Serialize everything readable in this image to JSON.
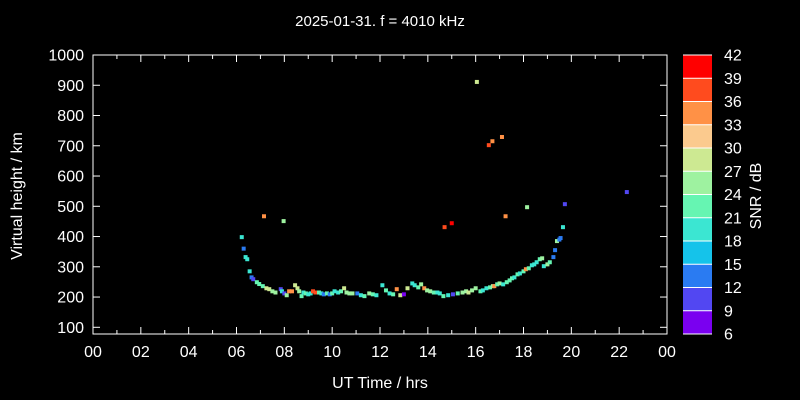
{
  "title": "2025-01-31. f = 4010 kHz",
  "axes": {
    "xlabel": "UT Time / hrs",
    "ylabel": "Virtual height / km",
    "colorbar_label": "SNR / dB"
  },
  "colors": {
    "background": "#000000",
    "frame": "#ffffff",
    "text": "#ffffff"
  },
  "chart_data": {
    "type": "scatter",
    "title": "2025-01-31. f = 4010 kHz",
    "xlabel": "UT Time / hrs",
    "ylabel": "Virtual height / km",
    "xlim": [
      0,
      24
    ],
    "ylim": [
      100,
      1000
    ],
    "x_tick_labels": [
      "00",
      "02",
      "04",
      "06",
      "08",
      "10",
      "12",
      "14",
      "16",
      "18",
      "20",
      "22",
      "00"
    ],
    "x_major_step_hrs": 2,
    "x_minor_step_hrs": 1,
    "y_tick_labels": [
      "100",
      "200",
      "300",
      "400",
      "500",
      "600",
      "700",
      "800",
      "900",
      "1000"
    ],
    "grid": false,
    "colorbar": {
      "label": "SNR / dB",
      "min": 6,
      "max": 42,
      "step": 3,
      "tick_labels": [
        "6",
        "9",
        "12",
        "15",
        "18",
        "21",
        "24",
        "27",
        "30",
        "33",
        "36",
        "39",
        "42"
      ],
      "segment_colors_bottom_to_top": [
        "#7a00f0",
        "#5247f2",
        "#2a7bf2",
        "#15c3ea",
        "#3be6d2",
        "#66f5b2",
        "#9ef2a0",
        "#cde992",
        "#fbca8e",
        "#ff9146",
        "#ff4b1e",
        "#ff0000"
      ]
    },
    "point_format": [
      "ut_hrs",
      "virtual_height_km",
      "snr_db"
    ],
    "points": [
      [
        6.22,
        398,
        19
      ],
      [
        6.3,
        360,
        13
      ],
      [
        6.38,
        332,
        19
      ],
      [
        6.45,
        325,
        20
      ],
      [
        6.55,
        285,
        19
      ],
      [
        6.63,
        265,
        12
      ],
      [
        6.7,
        259,
        11
      ],
      [
        6.85,
        249,
        22
      ],
      [
        6.95,
        243,
        22
      ],
      [
        7.1,
        236,
        23
      ],
      [
        7.15,
        467,
        34
      ],
      [
        7.25,
        229,
        28
      ],
      [
        7.37,
        226,
        28
      ],
      [
        7.5,
        219,
        25
      ],
      [
        7.63,
        215,
        25
      ],
      [
        7.85,
        226,
        10
      ],
      [
        7.9,
        219,
        19
      ],
      [
        7.97,
        451,
        25
      ],
      [
        8.0,
        212,
        9
      ],
      [
        8.1,
        206,
        26
      ],
      [
        8.2,
        219,
        34
      ],
      [
        8.32,
        219,
        33
      ],
      [
        8.45,
        239,
        28
      ],
      [
        8.55,
        229,
        28
      ],
      [
        8.62,
        219,
        26
      ],
      [
        8.72,
        203,
        21
      ],
      [
        8.8,
        215,
        19
      ],
      [
        8.9,
        212,
        22
      ],
      [
        9.0,
        209,
        19
      ],
      [
        9.1,
        212,
        19
      ],
      [
        9.2,
        219,
        38
      ],
      [
        9.3,
        215,
        37
      ],
      [
        9.45,
        215,
        22
      ],
      [
        9.55,
        212,
        19
      ],
      [
        9.65,
        209,
        13
      ],
      [
        9.78,
        212,
        21
      ],
      [
        9.9,
        209,
        14
      ],
      [
        10.0,
        212,
        22
      ],
      [
        10.1,
        219,
        19
      ],
      [
        10.25,
        215,
        19
      ],
      [
        10.37,
        219,
        21
      ],
      [
        10.5,
        229,
        28
      ],
      [
        10.6,
        215,
        25
      ],
      [
        10.72,
        212,
        26
      ],
      [
        10.85,
        212,
        25
      ],
      [
        11.05,
        212,
        13
      ],
      [
        11.2,
        206,
        19
      ],
      [
        11.35,
        203,
        21
      ],
      [
        11.55,
        212,
        25
      ],
      [
        11.7,
        209,
        21
      ],
      [
        11.85,
        206,
        19
      ],
      [
        12.1,
        239,
        19
      ],
      [
        12.25,
        222,
        21
      ],
      [
        12.4,
        212,
        19
      ],
      [
        12.55,
        209,
        21
      ],
      [
        12.7,
        226,
        34
      ],
      [
        12.85,
        206,
        28
      ],
      [
        13.0,
        209,
        7
      ],
      [
        13.15,
        229,
        29
      ],
      [
        13.35,
        245,
        19
      ],
      [
        13.45,
        239,
        19
      ],
      [
        13.6,
        232,
        22
      ],
      [
        13.72,
        242,
        25
      ],
      [
        13.85,
        229,
        33
      ],
      [
        13.97,
        222,
        25
      ],
      [
        14.1,
        219,
        26
      ],
      [
        14.25,
        215,
        21
      ],
      [
        14.4,
        215,
        19
      ],
      [
        14.5,
        212,
        18
      ],
      [
        14.65,
        203,
        21
      ],
      [
        14.7,
        431,
        37
      ],
      [
        14.85,
        206,
        19
      ],
      [
        15.0,
        444,
        40
      ],
      [
        15.05,
        209,
        11
      ],
      [
        15.25,
        212,
        21
      ],
      [
        15.45,
        215,
        25
      ],
      [
        15.6,
        219,
        26
      ],
      [
        15.7,
        215,
        29
      ],
      [
        15.85,
        222,
        25
      ],
      [
        16.0,
        229,
        26
      ],
      [
        16.05,
        911,
        29
      ],
      [
        16.2,
        219,
        22
      ],
      [
        16.3,
        222,
        19
      ],
      [
        16.45,
        229,
        19
      ],
      [
        16.55,
        702,
        37
      ],
      [
        16.6,
        232,
        22
      ],
      [
        16.7,
        715,
        34
      ],
      [
        16.72,
        236,
        26
      ],
      [
        16.78,
        236,
        33
      ],
      [
        16.9,
        242,
        22
      ],
      [
        17.0,
        245,
        26
      ],
      [
        17.1,
        729,
        34
      ],
      [
        17.15,
        242,
        19
      ],
      [
        17.25,
        467,
        33
      ],
      [
        17.3,
        249,
        22
      ],
      [
        17.42,
        255,
        22
      ],
      [
        17.52,
        262,
        22
      ],
      [
        17.62,
        265,
        19
      ],
      [
        17.75,
        275,
        22
      ],
      [
        17.85,
        278,
        19
      ],
      [
        18.0,
        285,
        22
      ],
      [
        18.1,
        292,
        33
      ],
      [
        18.15,
        497,
        26
      ],
      [
        18.22,
        295,
        22
      ],
      [
        18.35,
        305,
        19
      ],
      [
        18.45,
        308,
        19
      ],
      [
        18.55,
        315,
        19
      ],
      [
        18.68,
        325,
        22
      ],
      [
        18.78,
        328,
        26
      ],
      [
        18.85,
        302,
        19
      ],
      [
        19.0,
        308,
        26
      ],
      [
        19.1,
        315,
        22
      ],
      [
        19.25,
        332,
        13
      ],
      [
        19.32,
        355,
        13
      ],
      [
        19.4,
        385,
        25
      ],
      [
        19.5,
        390,
        13
      ],
      [
        19.55,
        395,
        13
      ],
      [
        19.65,
        431,
        19
      ],
      [
        19.73,
        507,
        10
      ],
      [
        22.32,
        547,
        10
      ]
    ]
  }
}
